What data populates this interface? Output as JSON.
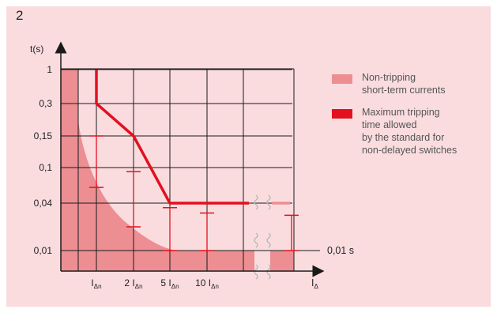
{
  "figure_number": "2",
  "colors": {
    "panel_bg": "#fadcdf",
    "non_tripping_fill": "#ec8e92",
    "max_tripping": "#e3101f",
    "range_bars": "#e3101f",
    "grid": "#1a1a1a"
  },
  "legend": [
    {
      "lines": [
        "Non-tripping",
        "short-term currents"
      ],
      "color": "#ec8e92",
      "style": "fill"
    },
    {
      "lines": [
        "Maximum tripping",
        "time allowed",
        "by the standard for",
        "non-delayed switches"
      ],
      "color": "#e3101f",
      "style": "line"
    }
  ],
  "chart_data": {
    "type": "line",
    "ylabel": "t(s)",
    "xlabel_base": "I",
    "xlabel_sub": "Δ",
    "y_ticks": [
      "1",
      "0,3",
      "0,15",
      "0,1",
      "0,04",
      "0,01"
    ],
    "x_ticks": [
      {
        "coef": "",
        "base": "I",
        "sub": "Δn"
      },
      {
        "coef": "2 ",
        "base": "I",
        "sub": "Δn"
      },
      {
        "coef": "5 ",
        "base": "I",
        "sub": "Δn"
      },
      {
        "coef": "10 ",
        "base": "I",
        "sub": "Δn"
      }
    ],
    "x_scale": "multiples of IΔn",
    "reference_line": {
      "y": 0.01,
      "label": "0,01 s"
    },
    "series": [
      {
        "name": "Maximum tripping time allowed by the standard for non-delayed switches",
        "points": [
          {
            "x": 1,
            "y": 1
          },
          {
            "x": 1,
            "y": 0.3
          },
          {
            "x": 2,
            "y": 0.15
          },
          {
            "x": 5,
            "y": 0.04
          },
          {
            "x": 10,
            "y": 0.04
          }
        ],
        "continues_beyond_break": true
      },
      {
        "name": "Non-tripping short-term currents",
        "boundary": "decaying from t = 1 s at I < IΔn down to t = 0,01 s near 5 IΔn",
        "fill_below": true
      }
    ],
    "tripping_time_ranges": [
      {
        "x": 1,
        "y_min": 0.06,
        "y_max": 0.15
      },
      {
        "x": 2,
        "y_min": 0.02,
        "y_max": 0.09
      },
      {
        "x": 5,
        "y_min": 0.01,
        "y_max": 0.035
      },
      {
        "x": 10,
        "y_min": 0.01,
        "y_max": 0.03
      },
      {
        "x": "beyond break",
        "y_min": 0.01,
        "y_max": 0.028
      }
    ]
  }
}
